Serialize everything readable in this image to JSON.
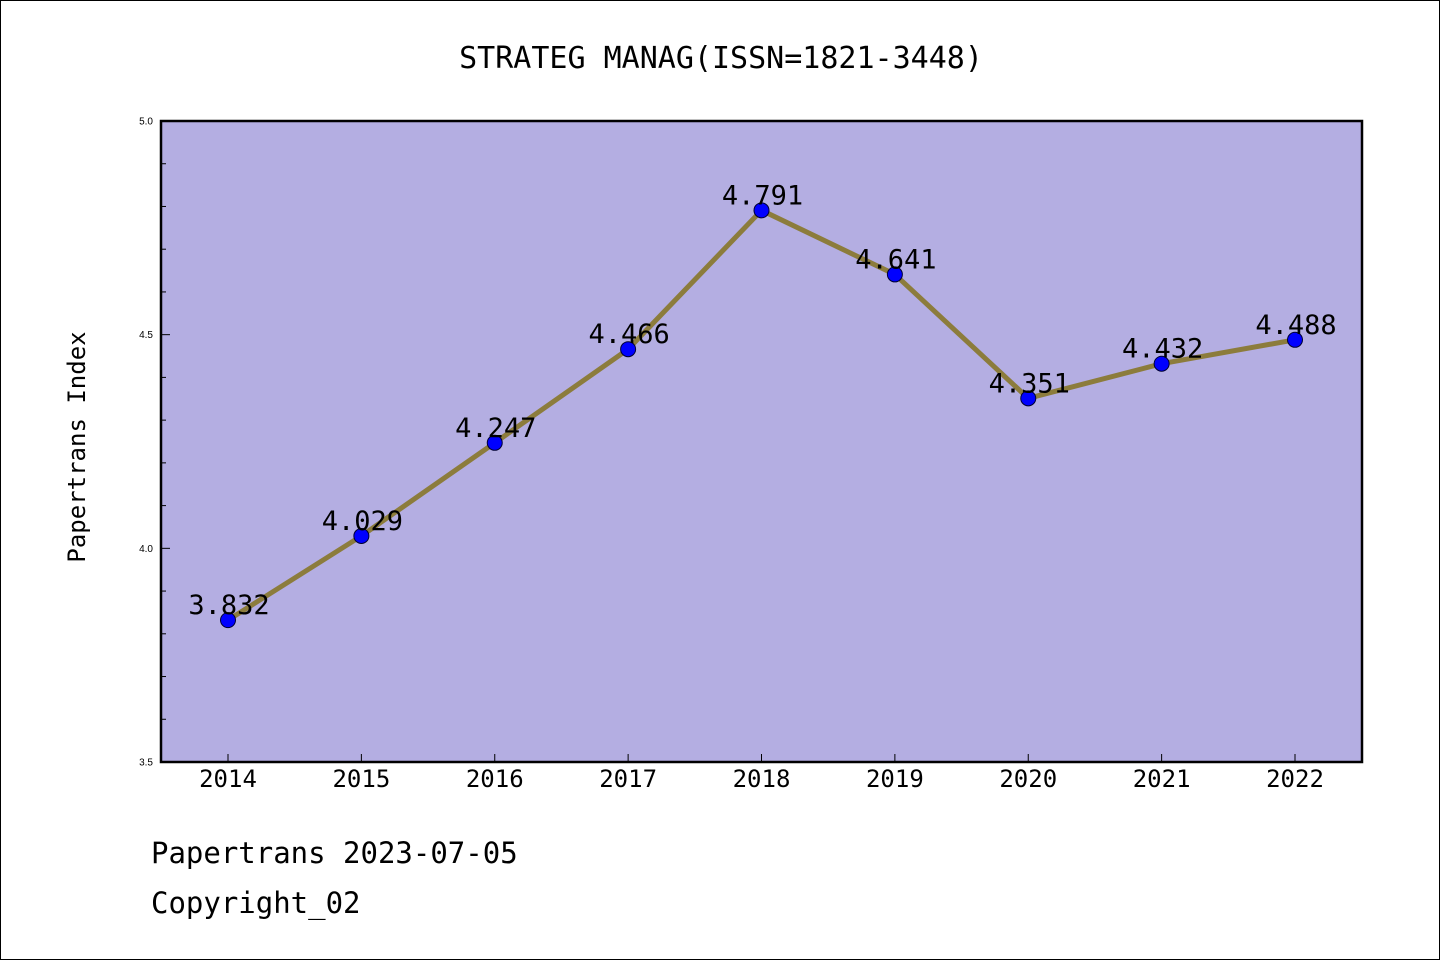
{
  "chart_data": {
    "type": "line",
    "title": "STRATEG MANAG(ISSN=1821-3448)",
    "xlabel": "",
    "ylabel": "Papertrans Index",
    "categories": [
      "2014",
      "2015",
      "2016",
      "2017",
      "2018",
      "2019",
      "2020",
      "2021",
      "2022"
    ],
    "series": [
      {
        "values": [
          3.832,
          4.029,
          4.247,
          4.466,
          4.791,
          4.641,
          4.351,
          4.432,
          4.488
        ]
      }
    ],
    "data_labels": [
      "3.832",
      "4.029",
      "4.247",
      "4.466",
      "4.791",
      "4.641",
      "4.351",
      "4.432",
      "4.488"
    ],
    "ylim": [
      3.5,
      5.0
    ],
    "yticks": [
      3.5,
      4.0,
      4.5,
      5.0
    ],
    "ytick_labels": [
      "3.5",
      "4.0",
      "4.5",
      "5.0"
    ],
    "grid": false,
    "legend": "none",
    "colors": {
      "plot_background": "#b4aee2",
      "line": "#8c7c3c",
      "marker": "#0000ff",
      "marker_edge": "#000033"
    }
  },
  "footer": {
    "date_line": "Papertrans 2023-07-05",
    "copyright": "Copyright_02"
  }
}
